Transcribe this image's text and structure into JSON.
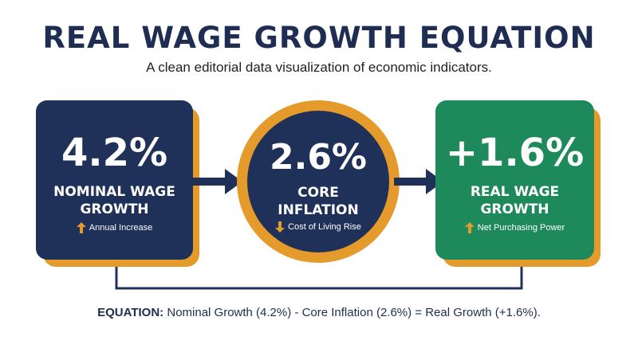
{
  "header": {
    "title": "REAL WAGE GROWTH EQUATION",
    "subtitle": "A clean editorial data visualization of economic indicators."
  },
  "steps": [
    {
      "value": "4.2%",
      "label_line1": "NOMINAL WAGE",
      "label_line2": "GROWTH",
      "note": "Annual Increase",
      "note_icon": "arrow-up-icon"
    },
    {
      "value": "2.6%",
      "label_line1": "CORE",
      "label_line2": "INFLATION",
      "note": "Cost of Living Rise",
      "note_icon": "arrow-down-icon"
    },
    {
      "value": "+1.6%",
      "label_line1": "REAL WAGE",
      "label_line2": "GROWTH",
      "note": "Net Purchasing Power",
      "note_icon": "arrow-up-icon"
    }
  ],
  "equation": {
    "prefix": "EQUATION:",
    "text": " Nominal Growth (4.2%) - Core Inflation (2.6%) = Real Growth (+1.6%)."
  },
  "colors": {
    "navy": "#1f3158",
    "green": "#1e8a5c",
    "orange": "#e49b2c"
  }
}
